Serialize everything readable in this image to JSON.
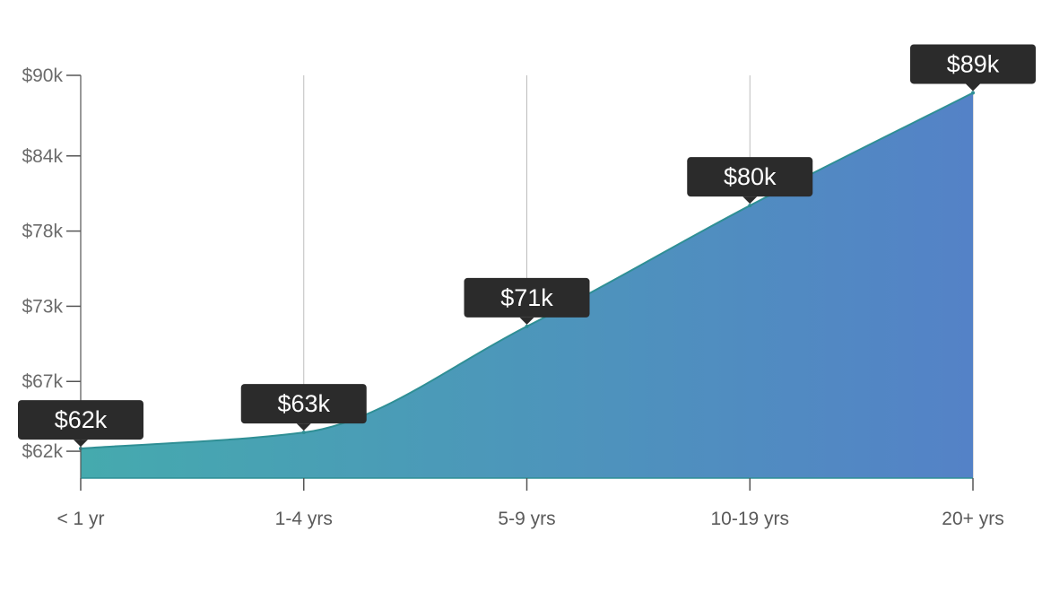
{
  "chart_data": {
    "type": "area",
    "title": "",
    "xlabel": "",
    "ylabel": "",
    "categories": [
      "< 1 yr",
      "1-4 yrs",
      "5-9 yrs",
      "10-19 yrs",
      "20+ yrs"
    ],
    "series": [
      {
        "values": [
          62200,
          63400,
          71300,
          80300,
          88700
        ],
        "value_labels": [
          "$62k",
          "$63k",
          "$71k",
          "$80k",
          "$89k"
        ]
      }
    ],
    "y_ticks": [
      {
        "value": 62000,
        "label": "$62k"
      },
      {
        "value": 67200,
        "label": "$67k"
      },
      {
        "value": 72800,
        "label": "$73k"
      },
      {
        "value": 78400,
        "label": "$78k"
      },
      {
        "value": 84000,
        "label": "$84k"
      },
      {
        "value": 90000,
        "label": "$90k"
      }
    ],
    "ylim": [
      60000,
      90000
    ],
    "grid": "vertical",
    "colors": {
      "gradient_start": "#45aaae",
      "gradient_end": "#5482c7",
      "line": "#2f8f95",
      "callout_bg": "#2b2b2b",
      "callout_text": "#ffffff",
      "axis": "#555555",
      "grid": "#bdbdbd"
    }
  }
}
